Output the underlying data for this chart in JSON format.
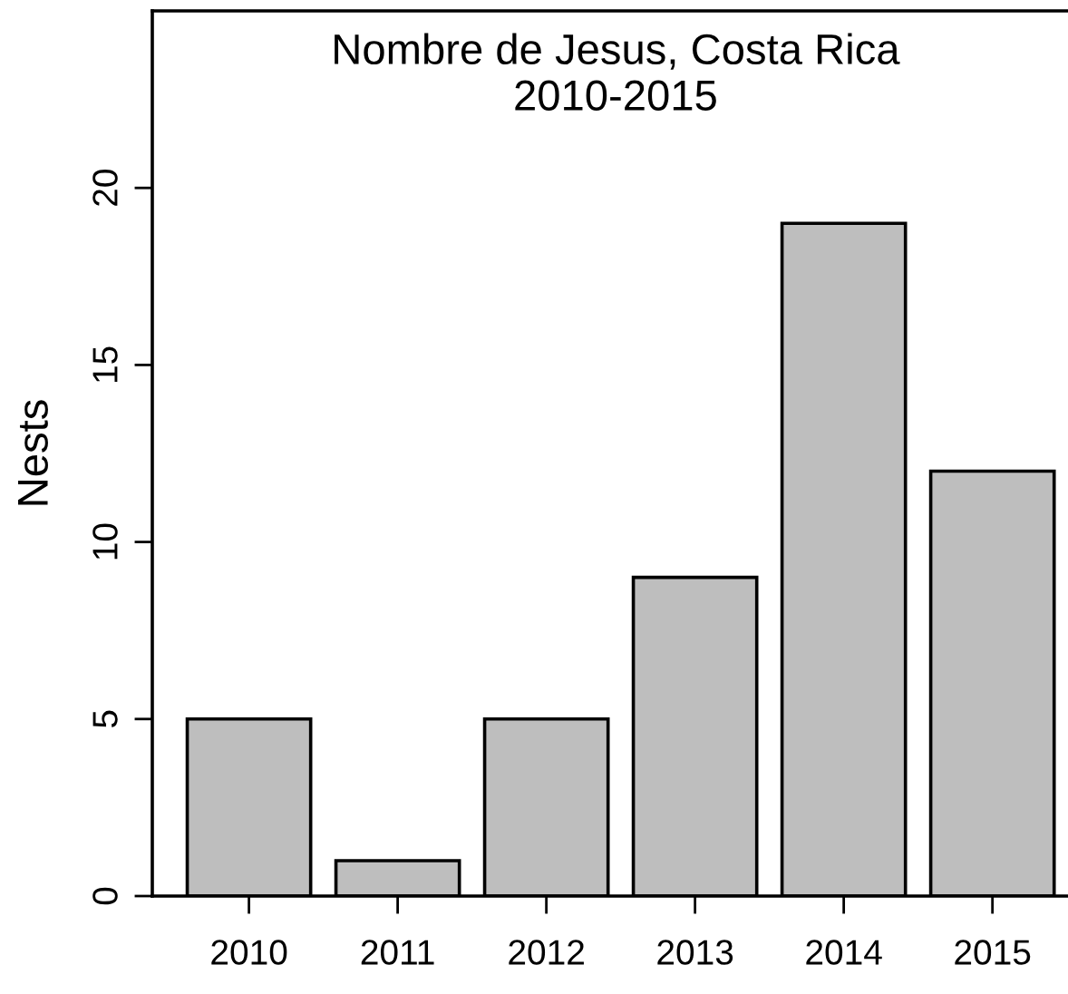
{
  "chart_data": {
    "type": "bar",
    "title": "Nombre de Jesus, Costa Rica\n2010-2015",
    "ylabel": "Nests",
    "categories": [
      "2010",
      "2011",
      "2012",
      "2013",
      "2014",
      "2015"
    ],
    "values": [
      5,
      1,
      5,
      9,
      19,
      12
    ],
    "color": "#bebebe",
    "ylim": [
      0,
      25
    ],
    "yticks": [
      0,
      5,
      10,
      15,
      20
    ],
    "grid": false
  }
}
